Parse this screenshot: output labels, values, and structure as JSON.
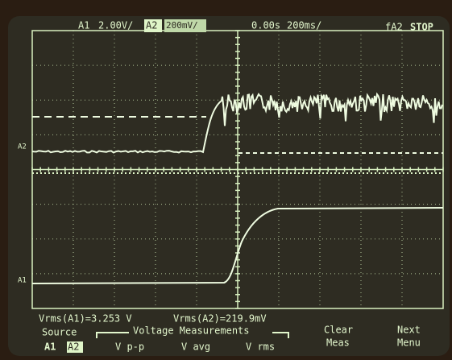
{
  "header": {
    "channel1": "A1",
    "scale1": "2.00V/",
    "channel2": "A2",
    "scale2": "200mV/",
    "time_position": "0.00s",
    "time_scale": "200ms/",
    "trigger": "fA2",
    "status": "STOP"
  },
  "markers": {
    "a2": "A2",
    "a1": "A1"
  },
  "measurements": [
    "Vrms(A1)=3.253 V",
    "Vrms(A2)=219.9mV"
  ],
  "menu": {
    "source": {
      "label": "Source",
      "options": [
        "A1",
        "A2"
      ]
    },
    "group": {
      "label": "Voltage Measurements",
      "keys": [
        "V p-p",
        "V avg",
        "V rms"
      ]
    },
    "clear": [
      "Clear",
      "Meas"
    ],
    "next": [
      "Next",
      "Menu"
    ]
  }
}
